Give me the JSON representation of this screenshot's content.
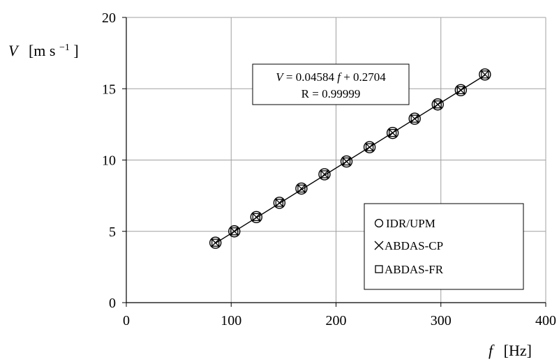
{
  "chart_data": {
    "type": "scatter",
    "x_axis": {
      "label_var": "f",
      "label_unit": "[Hz]",
      "range": [
        0,
        400
      ],
      "ticks": [
        "0",
        "100",
        "200",
        "300",
        "400"
      ]
    },
    "y_axis": {
      "label_var": "V",
      "label_unit": "[m s",
      "label_unit_sup": "−1",
      "label_unit_close": "]",
      "range": [
        0,
        20
      ],
      "ticks": [
        "0",
        "5",
        "10",
        "15",
        "20"
      ]
    },
    "grid": true,
    "series": [
      {
        "name": "IDR/UPM",
        "marker": "circle",
        "x": [
          85,
          103,
          124,
          146,
          167,
          189,
          210,
          232,
          254,
          275,
          297,
          319,
          342
        ],
        "y": [
          4.2,
          5.0,
          6.0,
          7.0,
          8.0,
          9.0,
          9.9,
          10.9,
          11.9,
          12.9,
          13.9,
          14.9,
          16.0
        ]
      },
      {
        "name": "ABDAS-CP",
        "marker": "x",
        "x": [
          85,
          103,
          124,
          146,
          167,
          189,
          210,
          232,
          254,
          275,
          297,
          319,
          342
        ],
        "y": [
          4.2,
          5.0,
          6.0,
          7.0,
          8.0,
          9.0,
          9.9,
          10.9,
          11.9,
          12.9,
          13.9,
          14.9,
          16.0
        ]
      },
      {
        "name": "ABDAS-FR",
        "marker": "square",
        "x": [
          85,
          103,
          124,
          146,
          167,
          189,
          210,
          232,
          254,
          275,
          297,
          319,
          342
        ],
        "y": [
          4.2,
          5.0,
          6.0,
          7.0,
          8.0,
          9.0,
          9.9,
          10.9,
          11.9,
          12.9,
          13.9,
          14.9,
          16.0
        ]
      }
    ],
    "fit": {
      "slope": 0.04584,
      "intercept": 0.2704,
      "x_range": [
        85,
        342
      ]
    },
    "annotation": {
      "eq_lhs": "V",
      "eq_mid": " = 0.04584",
      "eq_var": "f",
      "eq_tail": " + 0.2704",
      "r_line": "R = 0.99999"
    },
    "legend_position": "bottom-right"
  }
}
